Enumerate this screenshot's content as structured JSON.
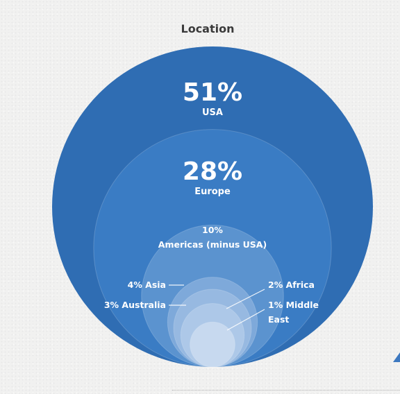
{
  "chart_data": {
    "type": "nested-bubble",
    "title": "Location",
    "slices": [
      {
        "name": "USA",
        "value": 51,
        "label": "51%",
        "color": "#2f6db3",
        "label_style": "big"
      },
      {
        "name": "Europe",
        "value": 28,
        "label": "28%",
        "color": "#3a7cc4",
        "label_style": "big"
      },
      {
        "name": "Americas (minus USA)",
        "value": 10,
        "label": "10%",
        "color": "#5b93cf",
        "label_style": "stacked"
      },
      {
        "name": "Asia",
        "value": 4,
        "label": "4% Asia",
        "color": "#7ea9da",
        "label_side": "left"
      },
      {
        "name": "Australia",
        "value": 3,
        "label": "3% Australia",
        "color": "#97b9e1",
        "label_side": "left"
      },
      {
        "name": "Africa",
        "value": 2,
        "label": "2% Africa",
        "color": "#adc8e8",
        "label_side": "right"
      },
      {
        "name": "Middle East",
        "value": 1,
        "label_line1": "1% Middle",
        "label_line2": "East",
        "color": "#c7d9ef",
        "label_side": "right"
      }
    ]
  }
}
